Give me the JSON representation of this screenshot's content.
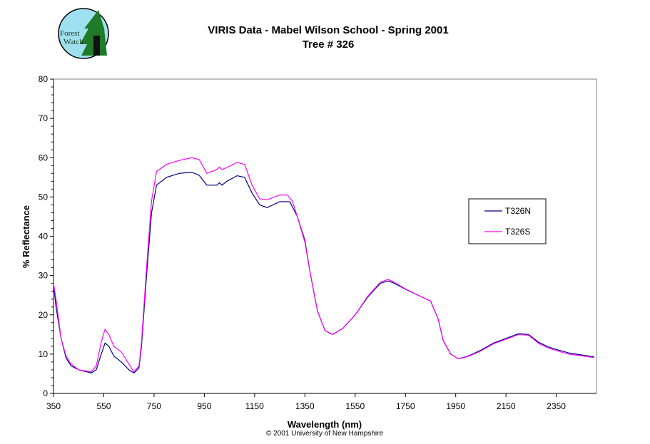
{
  "logo": {
    "text": "Forest Watch"
  },
  "chart_data": {
    "type": "line",
    "title": "VIRIS Data - Mabel Wilson School - Spring 2001",
    "subtitle": "Tree # 326",
    "xlabel": "Wavelength (nm)",
    "ylabel": "% Reflectance",
    "footer": "© 2001 University of New Hampshire",
    "xlim": [
      350,
      2510
    ],
    "ylim": [
      0,
      80
    ],
    "xticks": [
      350,
      550,
      750,
      950,
      1150,
      1350,
      1550,
      1750,
      1950,
      2150,
      2350
    ],
    "yticks": [
      0,
      10,
      20,
      30,
      40,
      50,
      60,
      70,
      80
    ],
    "grid": false,
    "legend_position": "right",
    "series": [
      {
        "name": "T326N",
        "color": "#000080",
        "x": [
          350,
          360,
          380,
          400,
          420,
          450,
          500,
          520,
          540,
          555,
          570,
          590,
          620,
          650,
          670,
          690,
          700,
          720,
          740,
          760,
          800,
          850,
          900,
          930,
          960,
          1000,
          1010,
          1020,
          1040,
          1080,
          1110,
          1140,
          1170,
          1200,
          1250,
          1290,
          1320,
          1350,
          1370,
          1400,
          1430,
          1460,
          1500,
          1550,
          1600,
          1650,
          1680,
          1700,
          1750,
          1800,
          1850,
          1880,
          1900,
          1930,
          1960,
          2000,
          2050,
          2100,
          2150,
          2200,
          2240,
          2280,
          2320,
          2350,
          2400,
          2450,
          2500
        ],
        "y": [
          28,
          22,
          14,
          9,
          7,
          6,
          5.2,
          6,
          10,
          12.8,
          12,
          9.5,
          8,
          6,
          5.2,
          6.5,
          12,
          30,
          46,
          53,
          55,
          56,
          56.3,
          55.5,
          53,
          53,
          53.6,
          53,
          54,
          55.4,
          55,
          51,
          48,
          47.3,
          48.8,
          48.8,
          45,
          39,
          31,
          21,
          16,
          15,
          16.5,
          20,
          24.5,
          28,
          28.6,
          28.2,
          26.5,
          25,
          23.5,
          19,
          13.5,
          10,
          8.8,
          9.5,
          11,
          12.8,
          14,
          15.2,
          15,
          13,
          11.8,
          11.2,
          10.3,
          9.8,
          9.3
        ]
      },
      {
        "name": "T326S",
        "color": "#FF00FF",
        "x": [
          350,
          360,
          380,
          400,
          420,
          450,
          500,
          520,
          540,
          555,
          570,
          590,
          620,
          650,
          670,
          690,
          700,
          720,
          740,
          760,
          800,
          850,
          900,
          930,
          960,
          1000,
          1010,
          1020,
          1040,
          1080,
          1110,
          1140,
          1170,
          1200,
          1250,
          1280,
          1300,
          1320,
          1350,
          1370,
          1400,
          1430,
          1460,
          1500,
          1550,
          1600,
          1650,
          1680,
          1700,
          1750,
          1800,
          1850,
          1880,
          1900,
          1930,
          1960,
          2000,
          2050,
          2100,
          2150,
          2200,
          2240,
          2280,
          2320,
          2350,
          2400,
          2450,
          2500
        ],
        "y": [
          28,
          24,
          14,
          9.5,
          7.5,
          6,
          5.5,
          7,
          13,
          16.3,
          15,
          12,
          10.5,
          7.5,
          5.5,
          7,
          13,
          32,
          49,
          56.5,
          58.3,
          59.3,
          60,
          59.5,
          56,
          57,
          57.6,
          57,
          57.5,
          58.8,
          58.3,
          53,
          49.5,
          49.3,
          50.5,
          50.5,
          49,
          45,
          38.5,
          31,
          21,
          16,
          15,
          16.5,
          20,
          24.7,
          28.3,
          29,
          28.5,
          26.6,
          25,
          23.5,
          19,
          13.5,
          10,
          8.8,
          9.4,
          10.8,
          12.6,
          13.8,
          15,
          14.8,
          12.7,
          11.5,
          10.9,
          10,
          9.6,
          9.1
        ]
      }
    ]
  }
}
